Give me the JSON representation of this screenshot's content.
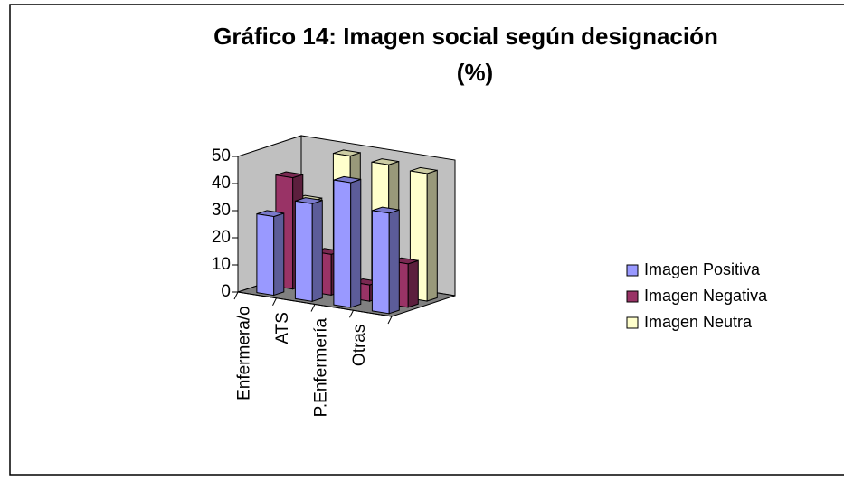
{
  "chart_data": {
    "type": "bar3d",
    "title": "Gráfico 14: Imagen social según designación",
    "subtitle": "(%)",
    "categories": [
      "Enfermera/o",
      "ATS",
      "P.Enfermería",
      "Otras"
    ],
    "series": [
      {
        "name": "Imagen Positiva",
        "color": "#9999ff",
        "values": [
          29,
          36,
          46,
          37
        ]
      },
      {
        "name": "Imagen Negativa",
        "color": "#993366",
        "values": [
          41,
          15,
          6,
          16
        ]
      },
      {
        "name": "Imagen Neutra",
        "color": "#ffffcc",
        "values": [
          30,
          49,
          48,
          47
        ]
      }
    ],
    "ylim": [
      0,
      50
    ],
    "yticks": [
      0,
      10,
      20,
      30,
      40,
      50
    ],
    "grid": false,
    "legend": "right"
  }
}
